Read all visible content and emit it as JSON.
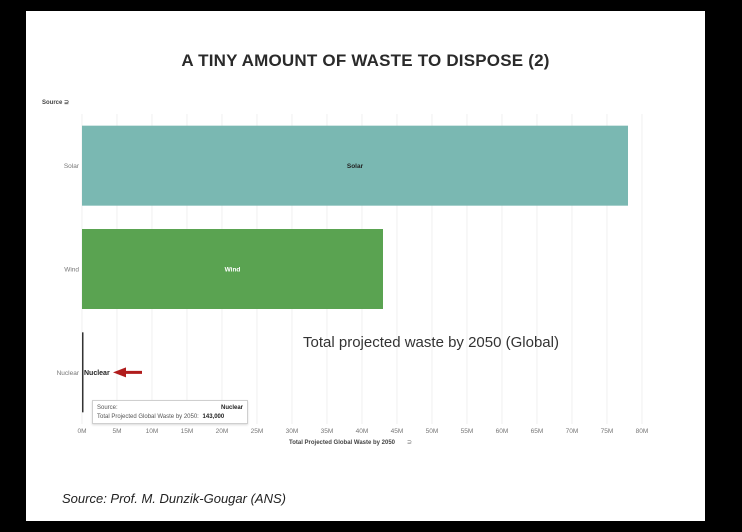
{
  "slide": {
    "title": "A TINY AMOUNT OF WASTE TO DISPOSE (2)",
    "footer": "Source: Prof. M. Dunzik-Gougar (ANS)",
    "annotation": "Total projected waste by 2050 (Global)"
  },
  "tooltip": {
    "source_label": "Source:",
    "source_value": "Nuclear",
    "waste_label": "Total Projected Global Waste by 2050:",
    "waste_value": "143,000"
  },
  "chart_data": {
    "type": "bar",
    "orientation": "horizontal",
    "ylabel": "Source",
    "xlabel": "Total Projected Global Waste by 2050",
    "categories": [
      "Solar",
      "Wind",
      "Nuclear"
    ],
    "values": [
      78000000,
      43000000,
      143000
    ],
    "bar_labels": [
      "Solar",
      "Wind",
      "Nuclear"
    ],
    "colors": [
      "#7ab8b2",
      "#5aa351",
      "#333333"
    ],
    "label_colors": [
      "#222222",
      "#ffffff",
      "#222222"
    ],
    "xlim": [
      0,
      80000000
    ],
    "xticks": [
      0,
      5000000,
      10000000,
      15000000,
      20000000,
      25000000,
      30000000,
      35000000,
      40000000,
      45000000,
      50000000,
      55000000,
      60000000,
      65000000,
      70000000,
      75000000,
      80000000
    ],
    "xtick_labels": [
      "0M",
      "5M",
      "10M",
      "15M",
      "20M",
      "25M",
      "30M",
      "35M",
      "40M",
      "45M",
      "50M",
      "55M",
      "60M",
      "65M",
      "70M",
      "75M",
      "80M"
    ],
    "grid": true,
    "arrow_points_to": "Nuclear",
    "arrow_color": "#b01c1c"
  }
}
